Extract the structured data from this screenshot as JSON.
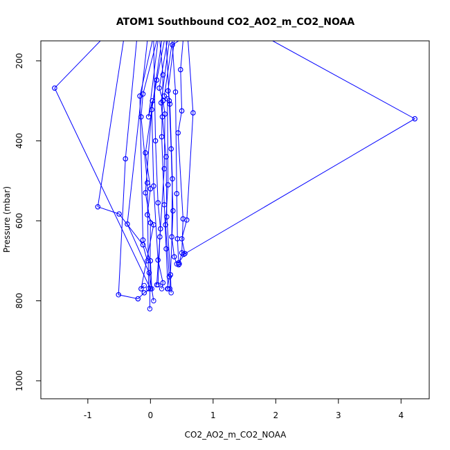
{
  "chart_data": {
    "type": "line",
    "title": "ATOM1 Southbound CO2_AO2_m_CO2_NOAA",
    "xlabel": "CO2_AO2_m_CO2_NOAA",
    "ylabel": "Pressure (mbar)",
    "xlim": [
      -1.75,
      4.45
    ],
    "ylim": [
      1045,
      150
    ],
    "y_reversed": true,
    "x_ticks": [
      -1,
      0,
      1,
      2,
      3,
      4
    ],
    "x_tick_labels": [
      "-1",
      "0",
      "1",
      "2",
      "3",
      "4"
    ],
    "y_ticks": [
      200,
      400,
      600,
      800,
      1000
    ],
    "y_tick_labels": [
      "200",
      "400",
      "600",
      "800",
      "1000"
    ],
    "grid": false,
    "color": "#0000ff",
    "marker": "open-circle",
    "series": [
      {
        "x": [
          -0.8,
          -1.53,
          -1.53,
          0.0,
          0.0,
          -0.1
        ],
        "y": [
          150,
          268,
          268,
          770,
          770,
          780
        ]
      },
      {
        "x": [
          1.95,
          4.22,
          4.22,
          0.53
        ],
        "y": [
          150,
          345,
          345,
          684
        ]
      },
      {
        "x": [
          -0.43,
          -0.84,
          -0.84,
          -0.5,
          -0.5,
          -0.12,
          -0.12,
          -0.05
        ],
        "y": [
          150,
          565,
          565,
          583,
          583,
          660,
          660,
          700
        ]
      },
      {
        "x": [
          -0.22,
          -0.4,
          -0.4,
          -0.51,
          -0.51,
          -0.2,
          -0.2,
          -0.1
        ],
        "y": [
          150,
          445,
          445,
          785,
          785,
          795,
          795,
          780
        ]
      },
      {
        "x": [
          -0.05,
          -0.37,
          -0.37,
          -0.02,
          -0.02,
          0.05
        ],
        "y": [
          150,
          608,
          608,
          730,
          730,
          800
        ]
      },
      {
        "x": [
          0.03,
          -0.17,
          -0.17,
          -0.12,
          -0.12,
          0.0,
          0.0,
          0.02
        ],
        "y": [
          150,
          288,
          288,
          648,
          648,
          700,
          700,
          770
        ]
      },
      {
        "x": [
          0.1,
          -0.12,
          -0.12,
          -0.15,
          -0.15,
          -0.05,
          -0.05,
          -0.03
        ],
        "y": [
          150,
          283,
          283,
          340,
          340,
          505,
          505,
          770
        ]
      },
      {
        "x": [
          0.12,
          -0.03,
          -0.03,
          0.03,
          0.03,
          -0.08,
          -0.08,
          0.0,
          0.0,
          -0.01
        ],
        "y": [
          150,
          340,
          340,
          300,
          300,
          530,
          530,
          605,
          605,
          820
        ]
      },
      {
        "x": [
          0.18,
          -0.08,
          -0.08,
          0.0,
          0.0,
          -0.05,
          -0.05,
          0.05,
          0.05,
          -0.15,
          -0.15,
          -0.1
        ],
        "y": [
          150,
          430,
          430,
          520,
          520,
          585,
          585,
          610,
          610,
          770,
          770,
          762
        ]
      },
      {
        "x": [
          0.22,
          0.1,
          0.1,
          0.02,
          0.02,
          0.05,
          0.05,
          0.12,
          0.12,
          0.2,
          0.2,
          0.18
        ],
        "y": [
          150,
          248,
          248,
          322,
          322,
          513,
          513,
          698,
          698,
          755,
          755,
          770
        ]
      },
      {
        "x": [
          0.27,
          0.14,
          0.14,
          0.2,
          0.2,
          0.23,
          0.23,
          0.22,
          0.22,
          0.15,
          0.15,
          0.12
        ],
        "y": [
          150,
          268,
          268,
          300,
          300,
          333,
          333,
          470,
          470,
          640,
          640,
          760
        ]
      },
      {
        "x": [
          0.3,
          0.17,
          0.17,
          0.19,
          0.19,
          0.25,
          0.25,
          0.26,
          0.26,
          0.32,
          0.32,
          0.33
        ],
        "y": [
          150,
          305,
          305,
          340,
          340,
          440,
          440,
          590,
          590,
          735,
          735,
          780
        ]
      },
      {
        "x": [
          0.35,
          0.22,
          0.22,
          0.27,
          0.27,
          0.28,
          0.28,
          0.24,
          0.24,
          0.3,
          0.3,
          0.27
        ],
        "y": [
          150,
          288,
          288,
          295,
          295,
          510,
          510,
          610,
          610,
          740,
          740,
          770
        ]
      },
      {
        "x": [
          0.38,
          0.28,
          0.28,
          0.31,
          0.31,
          0.35,
          0.35,
          0.34,
          0.34,
          0.38,
          0.38,
          0.42
        ],
        "y": [
          150,
          275,
          275,
          308,
          308,
          495,
          495,
          640,
          640,
          690,
          690,
          708
        ]
      },
      {
        "x": [
          0.45,
          0.35,
          0.35,
          0.4,
          0.4,
          0.42,
          0.42,
          0.43,
          0.43,
          0.45,
          0.45,
          0.46
        ],
        "y": [
          150,
          160,
          160,
          278,
          278,
          532,
          532,
          645,
          645,
          705,
          705,
          708
        ]
      },
      {
        "x": [
          0.52,
          0.48,
          0.48,
          0.5,
          0.5,
          0.44,
          0.44,
          0.52,
          0.52,
          0.5,
          0.5,
          0.45
        ],
        "y": [
          150,
          222,
          222,
          325,
          325,
          380,
          380,
          595,
          595,
          680,
          680,
          710
        ]
      },
      {
        "x": [
          0.6,
          0.68,
          0.68,
          0.58,
          0.58,
          0.5,
          0.5,
          0.55,
          0.55,
          0.45
        ],
        "y": [
          150,
          330,
          330,
          598,
          598,
          645,
          645,
          682,
          682,
          705
        ]
      },
      {
        "x": [
          0.05,
          0.08,
          0.08,
          0.12,
          0.12,
          0.16,
          0.16,
          0.1
        ],
        "y": [
          150,
          400,
          400,
          555,
          555,
          620,
          620,
          760
        ]
      },
      {
        "x": [
          0.15,
          0.2,
          0.2,
          0.18,
          0.18,
          0.22,
          0.22,
          0.25,
          0.25,
          0.28
        ],
        "y": [
          150,
          235,
          235,
          390,
          390,
          560,
          560,
          670,
          670,
          770
        ]
      },
      {
        "x": [
          0.25,
          0.3,
          0.3,
          0.33,
          0.33,
          0.36,
          0.36,
          0.31
        ],
        "y": [
          150,
          300,
          300,
          420,
          420,
          575,
          575,
          770
        ]
      }
    ]
  }
}
